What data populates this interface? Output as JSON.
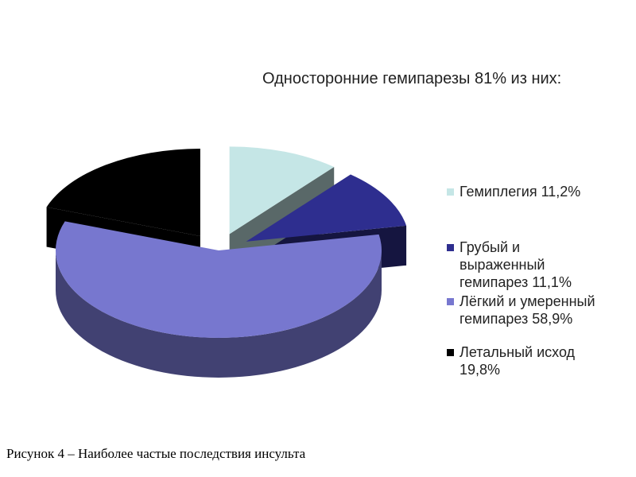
{
  "chart_data": {
    "type": "pie",
    "title": "Односторонние гемипарезы 81% из них:",
    "slices": [
      {
        "label": "Гемиплегия 11,2%",
        "value": 11.2,
        "color": "#c5e6e6",
        "exploded": true
      },
      {
        "label": "Грубый и выраженный гемипарез 11,1%",
        "value": 11.1,
        "color": "#2e2e8f",
        "exploded": true
      },
      {
        "label": "Лёгкий и умеренный гемипарез 58,9%",
        "value": 58.9,
        "color": "#7777cf",
        "exploded": false
      },
      {
        "label": "Летальный исход 19,8%",
        "value": 19.8,
        "color": "#000000",
        "exploded": true
      }
    ],
    "legend_position": "right",
    "style": "3d"
  },
  "caption": "Рисунок 4 – Наиболее частые последствия инсульта"
}
